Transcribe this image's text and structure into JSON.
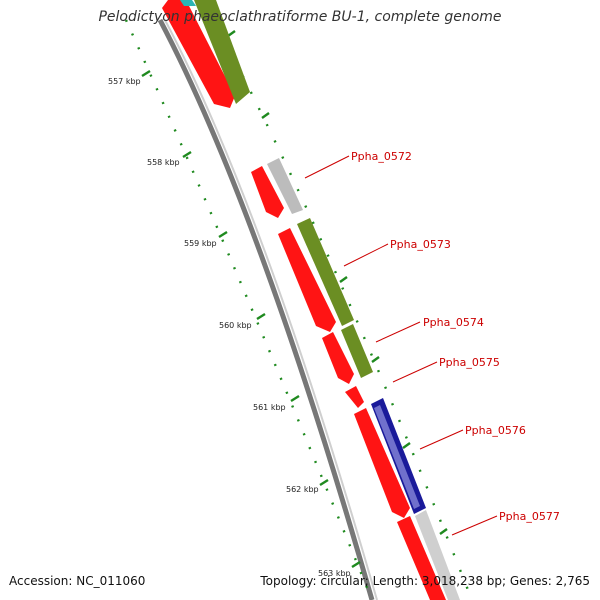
{
  "title": "Pelodictyon phaeoclathratiforme BU-1, complete genome",
  "footer": {
    "accession": "Accession: NC_011060",
    "summary": "Topology: circular; Length: 3,018,238 bp; Genes: 2,765"
  },
  "colors": {
    "cds_red": "#ff0000",
    "olive": "#6b8e23",
    "gray": "#bbbbbb",
    "navy": "#00008b",
    "tick_green": "#228b22",
    "label_red": "#cc0000"
  },
  "kbp_ticks": [
    "557 kbp",
    "558 kbp",
    "559 kbp",
    "560 kbp",
    "561 kbp",
    "562 kbp",
    "563 kbp"
  ],
  "gene_labels": [
    "Ppha_0572",
    "Ppha_0573",
    "Ppha_0574",
    "Ppha_0575",
    "Ppha_0576",
    "Ppha_0577"
  ]
}
